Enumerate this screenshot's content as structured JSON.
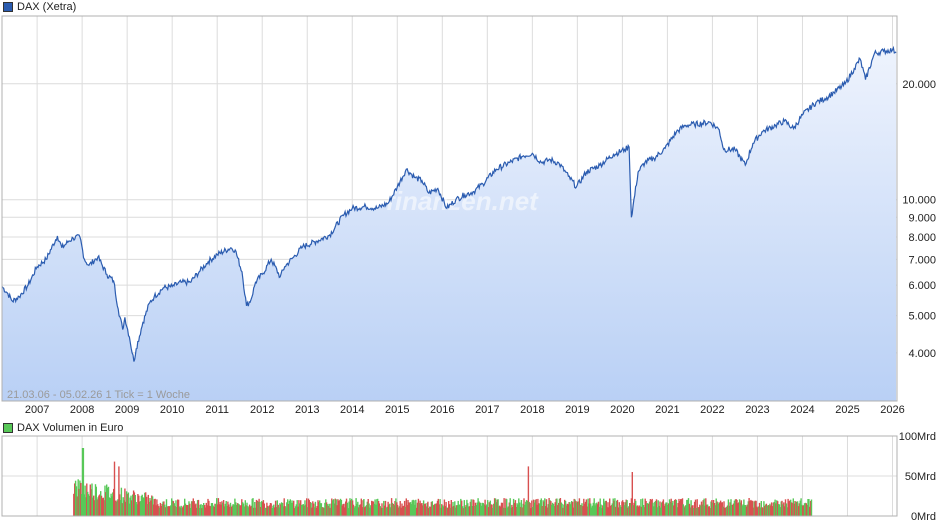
{
  "chart_data": [
    {
      "type": "line",
      "legend": "DAX (Xetra)",
      "series_color": "#2b5cb0",
      "y_scale": "log",
      "ylim": [
        3000,
        30000
      ],
      "y_ticks": [
        {
          "value": 4000,
          "label": "4.000"
        },
        {
          "value": 5000,
          "label": "5.000"
        },
        {
          "value": 6000,
          "label": "6.000"
        },
        {
          "value": 7000,
          "label": "7.000"
        },
        {
          "value": 8000,
          "label": "8.000"
        },
        {
          "value": 9000,
          "label": "9.000"
        },
        {
          "value": 10000,
          "label": "10.000"
        },
        {
          "value": 20000,
          "label": "20.000"
        }
      ],
      "x_range": [
        2006.22,
        2026.1
      ],
      "x_ticks": [
        "2007",
        "2008",
        "2009",
        "2010",
        "2011",
        "2012",
        "2013",
        "2014",
        "2015",
        "2016",
        "2017",
        "2018",
        "2019",
        "2020",
        "2021",
        "2022",
        "2023",
        "2024",
        "2025",
        "2026"
      ],
      "grid": true,
      "info_text": "21.03.06 - 05.02.26    1 Tick = 1 Woche",
      "watermark": "finanzen.net",
      "x": [
        2006.22,
        2006.35,
        2006.45,
        2006.6,
        2006.8,
        2007.0,
        2007.2,
        2007.45,
        2007.55,
        2007.7,
        2007.8,
        2007.95,
        2008.05,
        2008.15,
        2008.35,
        2008.55,
        2008.7,
        2008.8,
        2008.9,
        2008.95,
        2009.05,
        2009.15,
        2009.2,
        2009.35,
        2009.5,
        2009.6,
        2009.8,
        2010.0,
        2010.2,
        2010.4,
        2010.6,
        2010.8,
        2011.0,
        2011.3,
        2011.4,
        2011.55,
        2011.65,
        2011.75,
        2011.85,
        2012.0,
        2012.2,
        2012.4,
        2012.5,
        2012.7,
        2012.9,
        2013.2,
        2013.5,
        2013.8,
        2014.0,
        2014.3,
        2014.55,
        2014.8,
        2015.0,
        2015.2,
        2015.4,
        2015.55,
        2015.7,
        2015.9,
        2016.1,
        2016.3,
        2016.5,
        2016.7,
        2016.9,
        2017.2,
        2017.5,
        2017.8,
        2018.0,
        2018.2,
        2018.4,
        2018.6,
        2018.8,
        2018.98,
        2019.2,
        2019.5,
        2019.8,
        2020.05,
        2020.15,
        2020.2,
        2020.35,
        2020.5,
        2020.7,
        2020.95,
        2021.2,
        2021.4,
        2021.6,
        2021.95,
        2022.15,
        2022.25,
        2022.5,
        2022.73,
        2022.9,
        2023.1,
        2023.4,
        2023.6,
        2023.8,
        2024.0,
        2024.3,
        2024.5,
        2024.7,
        2024.95,
        2025.15,
        2025.28,
        2025.4,
        2025.6,
        2025.8,
        2026.0,
        2026.08
      ],
      "y": [
        5950,
        5700,
        5450,
        5600,
        6000,
        6700,
        7000,
        8050,
        7500,
        7800,
        7950,
        8000,
        7000,
        6750,
        7100,
        6400,
        6150,
        5200,
        4600,
        4950,
        4400,
        3800,
        4100,
        4800,
        5400,
        5600,
        5900,
        5950,
        6100,
        6100,
        6500,
        6900,
        7200,
        7500,
        7400,
        6500,
        5300,
        5500,
        6100,
        6400,
        7000,
        6300,
        6700,
        7100,
        7550,
        7800,
        8100,
        9100,
        9500,
        9600,
        9500,
        9800,
        10800,
        12000,
        11400,
        11200,
        10400,
        10700,
        9500,
        10000,
        10300,
        10500,
        11000,
        12000,
        12500,
        13000,
        13200,
        12500,
        12700,
        12400,
        11500,
        10800,
        11800,
        12300,
        13100,
        13500,
        13700,
        9000,
        11800,
        12500,
        12800,
        13600,
        15000,
        15600,
        15700,
        15900,
        15200,
        13500,
        13500,
        12300,
        14000,
        15000,
        15600,
        16000,
        15300,
        16600,
        17900,
        18300,
        19000,
        20000,
        21900,
        23200,
        20500,
        24000,
        24300,
        24500,
        24200
      ],
      "title": "",
      "xlabel": "",
      "ylabel": ""
    },
    {
      "type": "bar",
      "legend": "DAX Volumen in Euro",
      "ylim": [
        0,
        100
      ],
      "y_ticks": [
        {
          "value": 0,
          "label": "0Mrd"
        },
        {
          "value": 50,
          "label": "50Mrd"
        },
        {
          "value": 100,
          "label": "100Mrd"
        }
      ],
      "colors": {
        "up": "#58c858",
        "down": "#d85050"
      },
      "volume_range": [
        2007.8,
        2024.2
      ],
      "volume_level": 18,
      "peaks": [
        {
          "x": 2008.0,
          "value": 85
        },
        {
          "x": 2008.7,
          "value": 68
        },
        {
          "x": 2008.8,
          "value": 62
        },
        {
          "x": 2017.9,
          "value": 62
        },
        {
          "x": 2020.2,
          "value": 55
        }
      ],
      "title": "",
      "xlabel": "",
      "ylabel": ""
    }
  ]
}
